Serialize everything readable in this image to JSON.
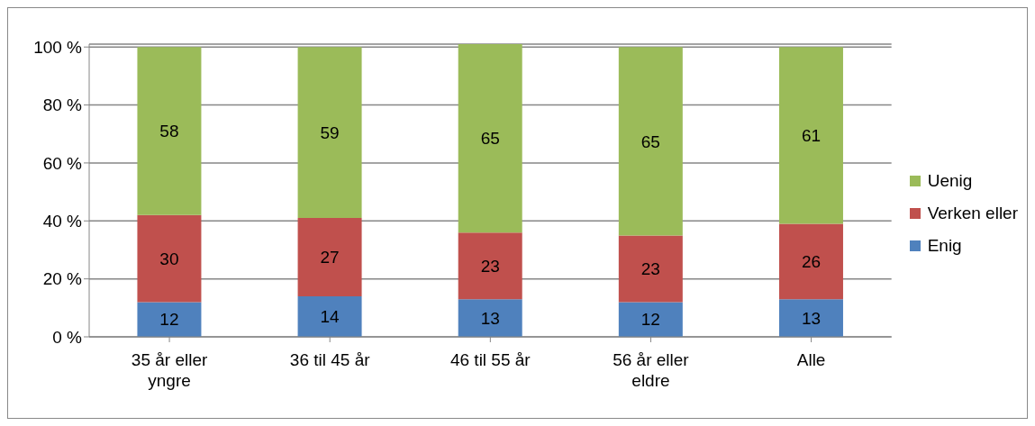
{
  "chart_data": {
    "type": "bar",
    "stacked": true,
    "categories": [
      "35 år eller yngre",
      "36 til 45 år",
      "46 til 55 år",
      "56 år eller eldre",
      "Alle"
    ],
    "series": [
      {
        "name": "Enig",
        "color": "#4f81bd",
        "values": [
          12,
          14,
          13,
          12,
          13
        ]
      },
      {
        "name": "Verken eller",
        "color": "#c0504d",
        "values": [
          30,
          27,
          23,
          23,
          26
        ]
      },
      {
        "name": "Uenig",
        "color": "#9bbb59",
        "values": [
          58,
          59,
          65,
          65,
          61
        ]
      }
    ],
    "ylim": [
      0,
      101
    ],
    "yticks": [
      {
        "value": 0,
        "label": "0 %"
      },
      {
        "value": 20,
        "label": "20 %"
      },
      {
        "value": 40,
        "label": "40 %"
      },
      {
        "value": 60,
        "label": "60 %"
      },
      {
        "value": 80,
        "label": "80 %"
      },
      {
        "value": 100,
        "label": "100 %"
      }
    ],
    "grid": "y",
    "legend": "right",
    "data_labels": true
  }
}
